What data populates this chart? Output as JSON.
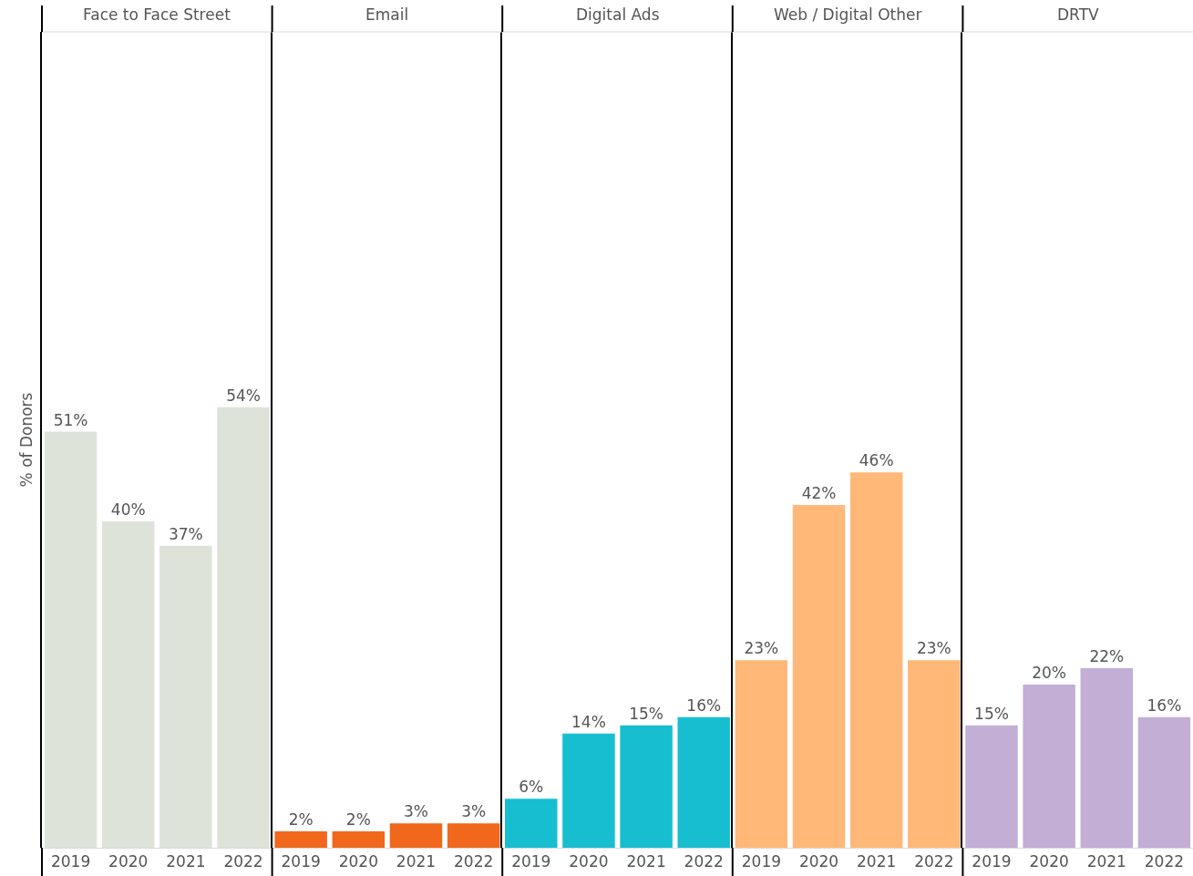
{
  "chart_data": [
    {
      "type": "bar",
      "title": "Face to Face Street",
      "ylabel": "% of Donors",
      "categories": [
        "2019",
        "2020",
        "2021",
        "2022"
      ],
      "values": [
        51,
        40,
        37,
        54
      ],
      "value_labels": [
        "51%",
        "40%",
        "37%",
        "54%"
      ],
      "color": "#dde3d9",
      "ylim": [
        0,
        100
      ],
      "tick_labels": "x"
    },
    {
      "type": "bar",
      "title": "Email",
      "categories": [
        "2019",
        "2020",
        "2021",
        "2022"
      ],
      "values": [
        2,
        2,
        3,
        3
      ],
      "value_labels": [
        "2%",
        "2%",
        "3%",
        "3%"
      ],
      "color": "#f1681c",
      "ylim": [
        0,
        100
      ],
      "tick_labels": "x"
    },
    {
      "type": "bar",
      "title": "Digital Ads",
      "categories": [
        "2019",
        "2020",
        "2021",
        "2022"
      ],
      "values": [
        6,
        14,
        15,
        16
      ],
      "value_labels": [
        "6%",
        "14%",
        "15%",
        "16%"
      ],
      "color": "#17becf",
      "ylim": [
        0,
        100
      ],
      "tick_labels": "x"
    },
    {
      "type": "bar",
      "title": "Web / Digital Other",
      "categories": [
        "2019",
        "2020",
        "2021",
        "2022"
      ],
      "values": [
        23,
        42,
        46,
        23
      ],
      "value_labels": [
        "23%",
        "42%",
        "46%",
        "23%"
      ],
      "color": "#ffb877",
      "ylim": [
        0,
        100
      ],
      "tick_labels": "x"
    },
    {
      "type": "bar",
      "title": "DRTV",
      "categories": [
        "2019",
        "2020",
        "2021",
        "2022"
      ],
      "values": [
        15,
        20,
        22,
        16
      ],
      "value_labels": [
        "15%",
        "20%",
        "22%",
        "16%"
      ],
      "color": "#c3aed6",
      "ylim": [
        0,
        100
      ],
      "tick_labels": "x"
    }
  ]
}
